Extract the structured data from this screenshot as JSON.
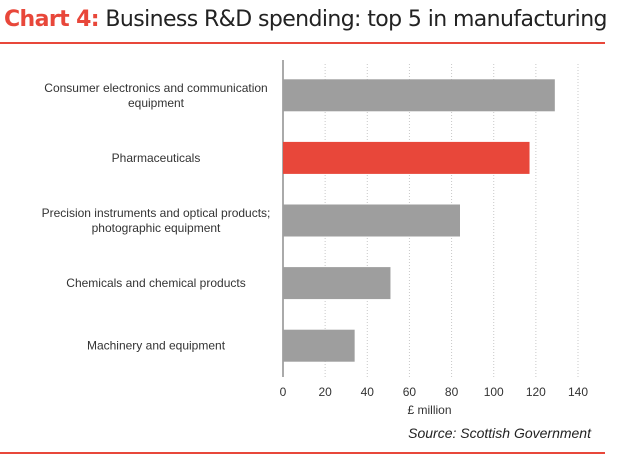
{
  "header": {
    "title_prefix": "Chart 4:",
    "title_main": "Business R&D spending: top 5 in manufacturing"
  },
  "footer": {
    "source": "Source: Scottish Government"
  },
  "colors": {
    "accent": "#e8473a",
    "bar": "#9e9e9e",
    "grid": "#c8c8c8"
  },
  "chart_data": {
    "type": "bar",
    "orientation": "horizontal",
    "categories": [
      [
        "Consumer electronics and communication",
        "equipment"
      ],
      [
        "Pharmaceuticals"
      ],
      [
        "Precision instruments and optical products;",
        "photographic equipment"
      ],
      [
        "Chemicals and chemical products"
      ],
      [
        "Machinery and equipment"
      ]
    ],
    "values": [
      129,
      117,
      84,
      51,
      34
    ],
    "highlight_index": 1,
    "xlabel": "£ million",
    "ylabel": "",
    "xlim": [
      0,
      140
    ],
    "xticks": [
      0,
      20,
      40,
      60,
      80,
      100,
      120,
      140
    ],
    "grid": "vertical dotted",
    "legend": "none"
  }
}
